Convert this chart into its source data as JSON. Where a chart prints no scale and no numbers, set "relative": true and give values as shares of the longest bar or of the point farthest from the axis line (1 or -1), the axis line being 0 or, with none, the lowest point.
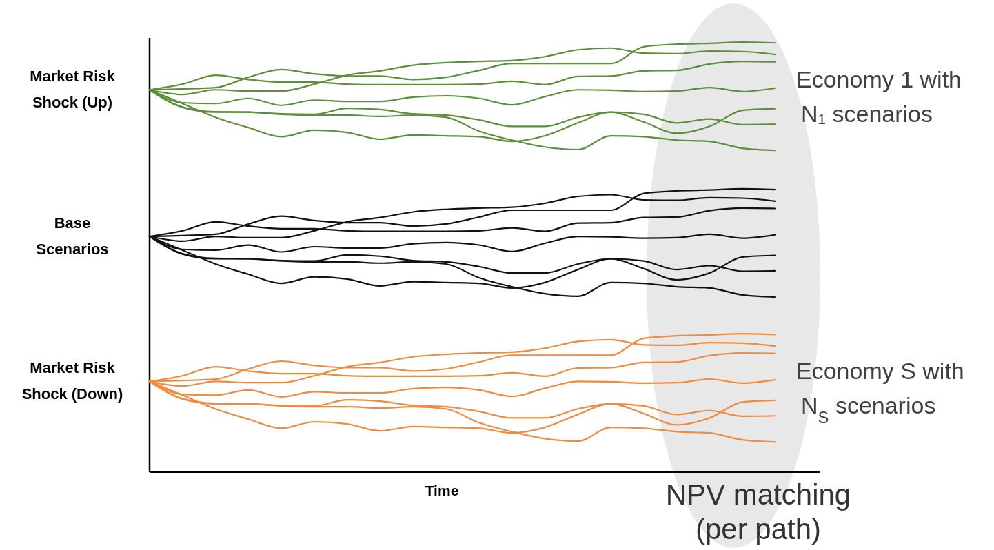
{
  "chart_data": {
    "type": "line",
    "relative": true,
    "xlabel": "Time",
    "categories": [
      null,
      null,
      null,
      null,
      null,
      null,
      null,
      null,
      null,
      null,
      null,
      null,
      null,
      null,
      null,
      null,
      null,
      null,
      null,
      null
    ],
    "series": [
      {
        "color": "#5b8f3a",
        "values": [
          0.889,
          0.891,
          0.894,
          0.918,
          0.936,
          0.926,
          0.921,
          0.921,
          0.913,
          0.918,
          0.934,
          0.95,
          0.95,
          0.95,
          0.95,
          0.989,
          0.995,
          0.997,
          1.0,
          0.998
        ]
      },
      {
        "color": "#5b8f3a",
        "values": [
          0.889,
          0.902,
          0.923,
          0.913,
          0.907,
          0.907,
          0.902,
          0.901,
          0.901,
          0.901,
          0.902,
          0.909,
          0.901,
          0.92,
          0.921,
          0.933,
          0.934,
          0.949,
          0.955,
          0.954
        ]
      },
      {
        "color": "#5b8f3a",
        "values": [
          0.889,
          0.878,
          0.889,
          0.886,
          0.886,
          0.902,
          0.923,
          0.933,
          0.946,
          0.952,
          0.955,
          0.957,
          0.966,
          0.982,
          0.986,
          0.974,
          0.973,
          0.979,
          0.978,
          0.971
        ]
      },
      {
        "color": "#5b8f3a",
        "values": [
          0.889,
          0.859,
          0.857,
          0.869,
          0.853,
          0.865,
          0.862,
          0.862,
          0.872,
          0.875,
          0.869,
          0.854,
          0.873,
          0.889,
          0.888,
          0.885,
          0.886,
          0.894,
          0.885,
          0.893
        ]
      },
      {
        "color": "#5b8f3a",
        "values": [
          0.889,
          0.849,
          0.838,
          0.837,
          0.833,
          0.832,
          0.846,
          0.843,
          0.833,
          0.83,
          0.819,
          0.804,
          0.804,
          0.825,
          0.837,
          0.814,
          0.788,
          0.804,
          0.841,
          0.845
        ]
      },
      {
        "color": "#5b8f3a",
        "values": [
          0.889,
          0.848,
          0.837,
          0.837,
          0.832,
          0.83,
          0.83,
          0.827,
          0.83,
          0.825,
          0.793,
          0.772,
          0.756,
          0.75,
          0.782,
          0.78,
          0.772,
          0.769,
          0.753,
          0.748
        ]
      },
      {
        "color": "#5b8f3a",
        "values": [
          0.889,
          0.857,
          0.825,
          0.801,
          0.78,
          0.795,
          0.79,
          0.774,
          0.784,
          0.782,
          0.78,
          0.769,
          0.782,
          0.812,
          0.837,
          0.832,
          0.812,
          0.821,
          0.808,
          0.809
        ]
      },
      {
        "color": "#111111",
        "values": [
          0.548,
          0.55,
          0.553,
          0.577,
          0.595,
          0.585,
          0.58,
          0.58,
          0.572,
          0.577,
          0.593,
          0.609,
          0.609,
          0.609,
          0.609,
          0.648,
          0.654,
          0.656,
          0.659,
          0.657
        ]
      },
      {
        "color": "#111111",
        "values": [
          0.548,
          0.561,
          0.582,
          0.572,
          0.566,
          0.566,
          0.561,
          0.56,
          0.56,
          0.56,
          0.561,
          0.568,
          0.56,
          0.579,
          0.58,
          0.592,
          0.593,
          0.608,
          0.614,
          0.613
        ]
      },
      {
        "color": "#111111",
        "values": [
          0.548,
          0.537,
          0.548,
          0.545,
          0.545,
          0.561,
          0.582,
          0.592,
          0.605,
          0.611,
          0.614,
          0.616,
          0.625,
          0.641,
          0.645,
          0.633,
          0.632,
          0.638,
          0.637,
          0.63
        ]
      },
      {
        "color": "#111111",
        "values": [
          0.548,
          0.518,
          0.516,
          0.528,
          0.512,
          0.524,
          0.521,
          0.521,
          0.531,
          0.534,
          0.528,
          0.513,
          0.532,
          0.548,
          0.547,
          0.544,
          0.545,
          0.553,
          0.544,
          0.552
        ]
      },
      {
        "color": "#111111",
        "values": [
          0.548,
          0.508,
          0.497,
          0.496,
          0.492,
          0.491,
          0.505,
          0.502,
          0.492,
          0.489,
          0.478,
          0.463,
          0.463,
          0.484,
          0.496,
          0.473,
          0.447,
          0.463,
          0.5,
          0.504
        ]
      },
      {
        "color": "#111111",
        "values": [
          0.548,
          0.507,
          0.496,
          0.496,
          0.491,
          0.489,
          0.489,
          0.486,
          0.489,
          0.484,
          0.452,
          0.431,
          0.415,
          0.409,
          0.441,
          0.439,
          0.431,
          0.428,
          0.412,
          0.407
        ]
      },
      {
        "color": "#111111",
        "values": [
          0.548,
          0.516,
          0.484,
          0.46,
          0.439,
          0.454,
          0.449,
          0.433,
          0.443,
          0.441,
          0.439,
          0.428,
          0.441,
          0.471,
          0.496,
          0.491,
          0.471,
          0.48,
          0.467,
          0.468
        ]
      },
      {
        "color": "#f08a3c",
        "values": [
          0.211,
          0.213,
          0.216,
          0.24,
          0.258,
          0.248,
          0.243,
          0.243,
          0.235,
          0.24,
          0.256,
          0.272,
          0.272,
          0.272,
          0.272,
          0.311,
          0.317,
          0.319,
          0.322,
          0.32
        ]
      },
      {
        "color": "#f08a3c",
        "values": [
          0.211,
          0.224,
          0.245,
          0.235,
          0.229,
          0.229,
          0.224,
          0.223,
          0.223,
          0.223,
          0.224,
          0.231,
          0.223,
          0.242,
          0.243,
          0.255,
          0.256,
          0.271,
          0.277,
          0.276
        ]
      },
      {
        "color": "#f08a3c",
        "values": [
          0.211,
          0.2,
          0.211,
          0.208,
          0.208,
          0.224,
          0.245,
          0.255,
          0.268,
          0.274,
          0.277,
          0.279,
          0.288,
          0.304,
          0.308,
          0.296,
          0.295,
          0.301,
          0.3,
          0.293
        ]
      },
      {
        "color": "#f08a3c",
        "values": [
          0.211,
          0.181,
          0.179,
          0.191,
          0.175,
          0.187,
          0.184,
          0.184,
          0.194,
          0.197,
          0.191,
          0.176,
          0.195,
          0.211,
          0.21,
          0.207,
          0.208,
          0.216,
          0.207,
          0.215
        ]
      },
      {
        "color": "#f08a3c",
        "values": [
          0.211,
          0.171,
          0.16,
          0.159,
          0.155,
          0.154,
          0.168,
          0.165,
          0.155,
          0.152,
          0.141,
          0.126,
          0.126,
          0.147,
          0.159,
          0.136,
          0.11,
          0.126,
          0.163,
          0.167
        ]
      },
      {
        "color": "#f08a3c",
        "values": [
          0.211,
          0.17,
          0.159,
          0.159,
          0.154,
          0.152,
          0.152,
          0.149,
          0.152,
          0.147,
          0.115,
          0.094,
          0.078,
          0.072,
          0.104,
          0.102,
          0.094,
          0.091,
          0.075,
          0.07
        ]
      },
      {
        "color": "#f08a3c",
        "values": [
          0.211,
          0.179,
          0.147,
          0.123,
          0.102,
          0.117,
          0.112,
          0.096,
          0.106,
          0.104,
          0.102,
          0.091,
          0.104,
          0.134,
          0.159,
          0.154,
          0.134,
          0.143,
          0.13,
          0.131
        ]
      }
    ],
    "annotations": [
      "Market Risk Shock (Up)",
      "Base Scenarios",
      "Market Risk Shock (Down)",
      "Economy 1 with N₁ scenarios",
      "Economy S with N$_{S}$ scenarios",
      "NPV matching (per path)"
    ]
  }
}
